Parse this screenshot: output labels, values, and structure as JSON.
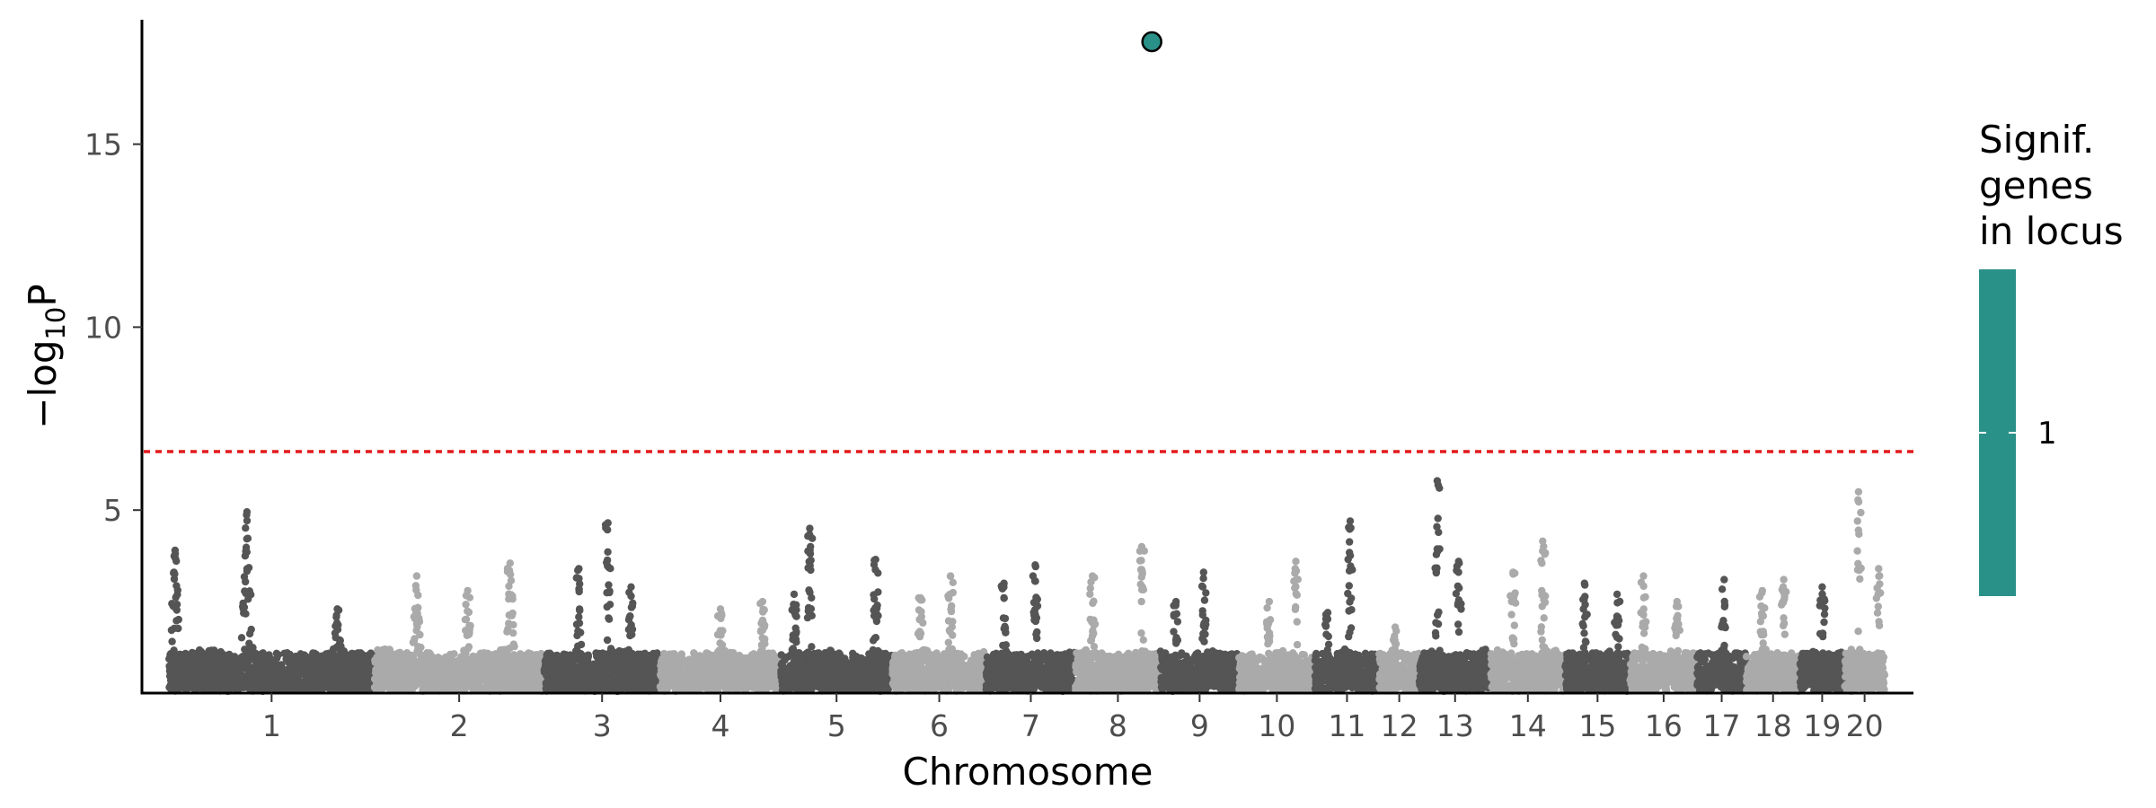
{
  "chart_data": {
    "type": "scatter",
    "title": "",
    "xlabel": "Chromosome",
    "ylabel_prefix": "−log",
    "ylabel_sub": "10",
    "ylabel_suffix": "P",
    "ylim": [
      0,
      18.4
    ],
    "yticks": [
      5,
      10,
      15
    ],
    "threshold": 6.6,
    "threshold_color": "#e41a1c",
    "point_colors": [
      "#555555",
      "#aaaaaa"
    ],
    "chromosomes": [
      {
        "label": "1",
        "peaks": [
          [
            0.03,
            3.9
          ],
          [
            0.38,
            4.95
          ],
          [
            0.82,
            2.3
          ]
        ]
      },
      {
        "label": "2",
        "peaks": [
          [
            0.25,
            3.2
          ],
          [
            0.55,
            2.8
          ],
          [
            0.8,
            3.55
          ]
        ]
      },
      {
        "label": "3",
        "peaks": [
          [
            0.3,
            3.4
          ],
          [
            0.55,
            4.65
          ],
          [
            0.75,
            2.9
          ]
        ]
      },
      {
        "label": "4",
        "peaks": [
          [
            0.5,
            2.3
          ],
          [
            0.85,
            2.5
          ]
        ]
      },
      {
        "label": "5",
        "peaks": [
          [
            0.12,
            2.7
          ],
          [
            0.26,
            4.5
          ],
          [
            0.85,
            3.65
          ]
        ]
      },
      {
        "label": "6",
        "peaks": [
          [
            0.3,
            2.6
          ],
          [
            0.62,
            3.2
          ]
        ]
      },
      {
        "label": "7",
        "peaks": [
          [
            0.2,
            3.0
          ],
          [
            0.55,
            3.5
          ]
        ]
      },
      {
        "label": "8",
        "peaks": [
          [
            0.2,
            3.2
          ],
          [
            0.78,
            4.0
          ]
        ]
      },
      {
        "label": "9",
        "peaks": [
          [
            0.2,
            2.5
          ],
          [
            0.55,
            3.3
          ]
        ]
      },
      {
        "label": "10",
        "peaks": [
          [
            0.4,
            2.5
          ],
          [
            0.75,
            3.6
          ]
        ]
      },
      {
        "label": "11",
        "peaks": [
          [
            0.2,
            2.2
          ],
          [
            0.55,
            4.7
          ]
        ]
      },
      {
        "label": "12",
        "peaks": [
          [
            0.4,
            1.8
          ]
        ]
      },
      {
        "label": "13",
        "peaks": [
          [
            0.25,
            5.8
          ],
          [
            0.55,
            3.6
          ]
        ]
      },
      {
        "label": "14",
        "peaks": [
          [
            0.3,
            3.3
          ],
          [
            0.7,
            4.15
          ]
        ]
      },
      {
        "label": "15",
        "peaks": [
          [
            0.3,
            3.0
          ],
          [
            0.8,
            2.7
          ]
        ]
      },
      {
        "label": "16",
        "peaks": [
          [
            0.2,
            3.2
          ],
          [
            0.7,
            2.5
          ]
        ]
      },
      {
        "label": "17",
        "peaks": [
          [
            0.55,
            3.1
          ]
        ]
      },
      {
        "label": "18",
        "peaks": [
          [
            0.3,
            2.8
          ],
          [
            0.7,
            3.1
          ]
        ]
      },
      {
        "label": "19",
        "peaks": [
          [
            0.5,
            2.9
          ]
        ]
      },
      {
        "label": "20",
        "peaks": [
          [
            0.35,
            5.5
          ],
          [
            0.85,
            3.4
          ]
        ]
      }
    ],
    "highlight_points": [
      {
        "chromosome": "8",
        "position": 0.9,
        "y": 17.8,
        "color": "#2a9188"
      }
    ],
    "legend": {
      "title_lines": [
        "Signif.",
        "genes",
        "in locus"
      ],
      "color": "#2a9188",
      "value_label": "1",
      "placement": "right"
    }
  }
}
